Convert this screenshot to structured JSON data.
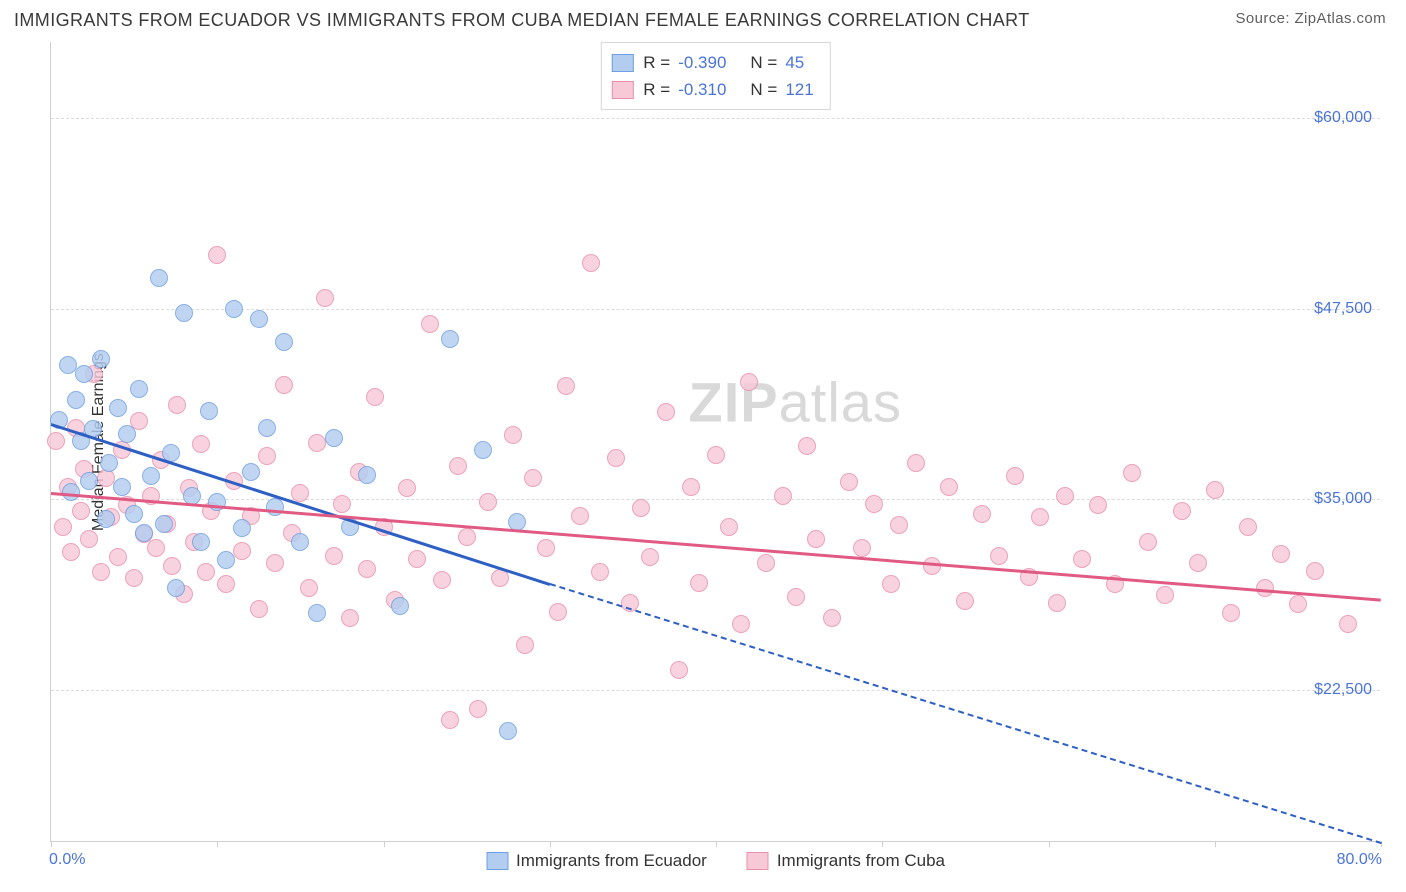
{
  "title": "IMMIGRANTS FROM ECUADOR VS IMMIGRANTS FROM CUBA MEDIAN FEMALE EARNINGS CORRELATION CHART",
  "source": "Source: ZipAtlas.com",
  "watermark_a": "ZIP",
  "watermark_b": "atlas",
  "chart": {
    "type": "scatter",
    "ylabel": "Median Female Earnings",
    "background_color": "#ffffff",
    "grid_color": "#dcdcdc",
    "axis_color": "#cfcfcf",
    "tick_label_color": "#4a74d8",
    "xlim": [
      0,
      80
    ],
    "ylim": [
      12500,
      65000
    ],
    "y_ticks": [
      22500,
      35000,
      47500,
      60000
    ],
    "y_tick_labels": [
      "$22,500",
      "$35,000",
      "$47,500",
      "$60,000"
    ],
    "x_ticks": [
      0,
      10,
      20,
      30,
      40,
      50,
      60,
      70,
      80
    ],
    "x_min_label": "0.0%",
    "x_max_label": "80.0%",
    "marker_radius": 9,
    "marker_stroke_width": 1.5,
    "series": [
      {
        "name": "Immigrants from Ecuador",
        "name_label": "Immigrants from Ecuador",
        "fill": "#b3cdf0",
        "stroke": "#6f9fe0",
        "line_color": "#2d5fc4",
        "R_label": "R =",
        "R": "-0.390",
        "N_label": "N =",
        "N": "45",
        "trend": {
          "x1": 0,
          "y1": 40000,
          "x2": 30,
          "y2": 29500,
          "extend_x2": 80,
          "extend_y2": 12500
        },
        "points": [
          [
            0.5,
            40200
          ],
          [
            1,
            43800
          ],
          [
            1.2,
            35500
          ],
          [
            1.5,
            41500
          ],
          [
            1.8,
            38800
          ],
          [
            2,
            43200
          ],
          [
            2.3,
            36200
          ],
          [
            2.5,
            39600
          ],
          [
            3,
            44200
          ],
          [
            3.3,
            33700
          ],
          [
            3.5,
            37400
          ],
          [
            4,
            41000
          ],
          [
            4.3,
            35800
          ],
          [
            4.6,
            39300
          ],
          [
            5,
            34000
          ],
          [
            5.3,
            42200
          ],
          [
            5.6,
            32800
          ],
          [
            6,
            36500
          ],
          [
            6.5,
            49500
          ],
          [
            6.8,
            33400
          ],
          [
            7.2,
            38000
          ],
          [
            7.5,
            29200
          ],
          [
            8,
            47200
          ],
          [
            8.5,
            35200
          ],
          [
            9,
            32200
          ],
          [
            9.5,
            40800
          ],
          [
            10,
            34800
          ],
          [
            10.5,
            31000
          ],
          [
            11,
            47500
          ],
          [
            11.5,
            33100
          ],
          [
            12,
            36800
          ],
          [
            12.5,
            46800
          ],
          [
            13,
            39700
          ],
          [
            13.5,
            34500
          ],
          [
            14,
            45300
          ],
          [
            15,
            32200
          ],
          [
            16,
            27500
          ],
          [
            17,
            39000
          ],
          [
            18,
            33200
          ],
          [
            19,
            36600
          ],
          [
            21,
            28000
          ],
          [
            24,
            45500
          ],
          [
            26,
            38200
          ],
          [
            27.5,
            19800
          ],
          [
            28,
            33500
          ]
        ]
      },
      {
        "name": "Immigrants from Cuba",
        "name_label": "Immigrants from Cuba",
        "fill": "#f7c9d7",
        "stroke": "#e98fab",
        "line_color": "#e15a84",
        "R_label": "R =",
        "R": "-0.310",
        "N_label": "N =",
        "N": "121",
        "trend": {
          "x1": 0,
          "y1": 35500,
          "x2": 80,
          "y2": 28500
        },
        "points": [
          [
            0.3,
            38800
          ],
          [
            0.7,
            33200
          ],
          [
            1,
            35800
          ],
          [
            1.2,
            31500
          ],
          [
            1.5,
            39700
          ],
          [
            1.8,
            34200
          ],
          [
            2,
            37000
          ],
          [
            2.3,
            32400
          ],
          [
            2.6,
            43200
          ],
          [
            3,
            30200
          ],
          [
            3.3,
            36400
          ],
          [
            3.6,
            33800
          ],
          [
            4,
            31200
          ],
          [
            4.3,
            38200
          ],
          [
            4.6,
            34600
          ],
          [
            5,
            29800
          ],
          [
            5.3,
            40100
          ],
          [
            5.6,
            32700
          ],
          [
            6,
            35200
          ],
          [
            6.3,
            31800
          ],
          [
            6.6,
            37600
          ],
          [
            7,
            33400
          ],
          [
            7.3,
            30600
          ],
          [
            7.6,
            41200
          ],
          [
            8,
            28800
          ],
          [
            8.3,
            35700
          ],
          [
            8.6,
            32200
          ],
          [
            9,
            38600
          ],
          [
            9.3,
            30200
          ],
          [
            9.6,
            34200
          ],
          [
            10,
            51000
          ],
          [
            10.5,
            29400
          ],
          [
            11,
            36200
          ],
          [
            11.5,
            31600
          ],
          [
            12,
            33900
          ],
          [
            12.5,
            27800
          ],
          [
            13,
            37800
          ],
          [
            13.5,
            30800
          ],
          [
            14,
            42500
          ],
          [
            14.5,
            32800
          ],
          [
            15,
            35400
          ],
          [
            15.5,
            29200
          ],
          [
            16,
            38700
          ],
          [
            16.5,
            48200
          ],
          [
            17,
            31300
          ],
          [
            17.5,
            34700
          ],
          [
            18,
            27200
          ],
          [
            18.5,
            36800
          ],
          [
            19,
            30400
          ],
          [
            19.5,
            41700
          ],
          [
            20,
            33200
          ],
          [
            20.7,
            28400
          ],
          [
            21.4,
            35700
          ],
          [
            22,
            31100
          ],
          [
            22.8,
            46500
          ],
          [
            23.5,
            29700
          ],
          [
            24,
            20500
          ],
          [
            24.5,
            37200
          ],
          [
            25,
            32500
          ],
          [
            25.7,
            21200
          ],
          [
            26.3,
            34800
          ],
          [
            27,
            29800
          ],
          [
            27.8,
            39200
          ],
          [
            28.5,
            25400
          ],
          [
            29,
            36400
          ],
          [
            29.8,
            31800
          ],
          [
            30.5,
            27600
          ],
          [
            31,
            42400
          ],
          [
            31.8,
            33900
          ],
          [
            32.5,
            50500
          ],
          [
            33,
            30200
          ],
          [
            34,
            37700
          ],
          [
            34.8,
            28200
          ],
          [
            35.5,
            34400
          ],
          [
            36,
            31200
          ],
          [
            37,
            40700
          ],
          [
            37.8,
            23800
          ],
          [
            38.5,
            35800
          ],
          [
            39,
            29500
          ],
          [
            40,
            37900
          ],
          [
            40.8,
            33200
          ],
          [
            41.5,
            26800
          ],
          [
            42,
            42700
          ],
          [
            43,
            30800
          ],
          [
            44,
            35200
          ],
          [
            44.8,
            28600
          ],
          [
            45.5,
            38500
          ],
          [
            46,
            32400
          ],
          [
            47,
            27200
          ],
          [
            48,
            36100
          ],
          [
            48.8,
            31800
          ],
          [
            49.5,
            34700
          ],
          [
            50.5,
            29400
          ],
          [
            51,
            33300
          ],
          [
            52,
            37400
          ],
          [
            53,
            30600
          ],
          [
            54,
            35800
          ],
          [
            55,
            28300
          ],
          [
            56,
            34000
          ],
          [
            57,
            31300
          ],
          [
            58,
            36500
          ],
          [
            58.8,
            29900
          ],
          [
            59.5,
            33800
          ],
          [
            60.5,
            28200
          ],
          [
            61,
            35200
          ],
          [
            62,
            31100
          ],
          [
            63,
            34600
          ],
          [
            64,
            29400
          ],
          [
            65,
            36700
          ],
          [
            66,
            32200
          ],
          [
            67,
            28700
          ],
          [
            68,
            34200
          ],
          [
            69,
            30800
          ],
          [
            70,
            35600
          ],
          [
            71,
            27500
          ],
          [
            72,
            33200
          ],
          [
            73,
            29200
          ],
          [
            74,
            31400
          ],
          [
            75,
            28100
          ],
          [
            76,
            30300
          ],
          [
            78,
            26800
          ]
        ]
      }
    ]
  }
}
